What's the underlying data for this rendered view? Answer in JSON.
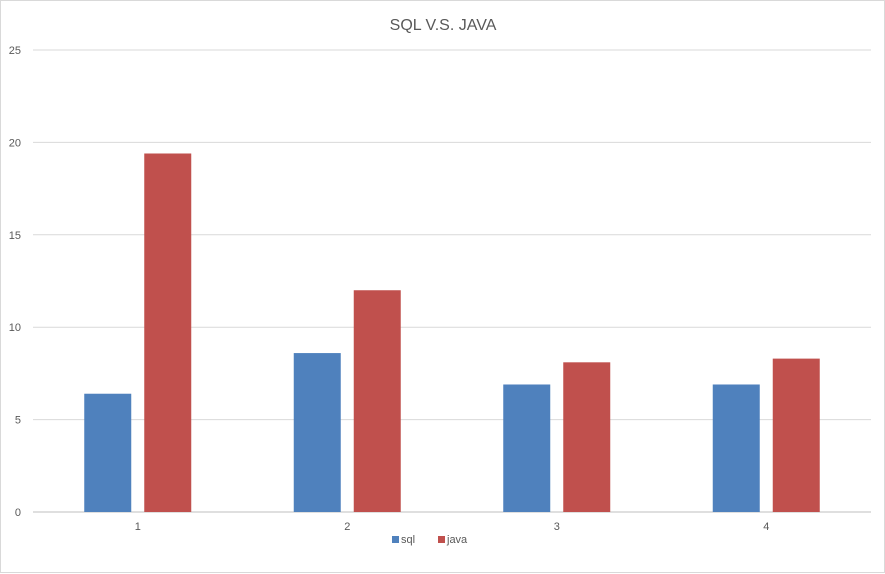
{
  "chart_data": {
    "type": "bar",
    "title": "SQL V.S. JAVA",
    "categories": [
      "1",
      "2",
      "3",
      "4"
    ],
    "series": [
      {
        "name": "sql",
        "values": [
          6.4,
          8.6,
          6.9,
          6.9
        ],
        "color": "#4f81bd"
      },
      {
        "name": "java",
        "values": [
          19.4,
          12.0,
          8.1,
          8.3
        ],
        "color": "#c0504d"
      }
    ],
    "ylim": [
      0,
      25
    ],
    "yticks": [
      0,
      5,
      10,
      15,
      20,
      25
    ],
    "grid": true,
    "legend": "bottom"
  }
}
